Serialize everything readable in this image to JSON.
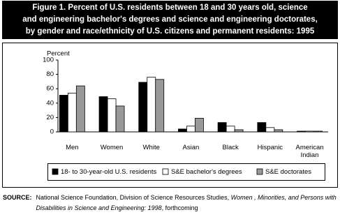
{
  "chart_data": {
    "type": "bar",
    "title": [
      "Figure 1.  Percent of U.S. residents between 18 and 30 years old, science",
      "and engineering bachelor's degrees and science and engineering doctorates,",
      "by gender and race/ethnicity of U.S. citizens and permanent residents: 1995"
    ],
    "y_label": "Percent",
    "categories": [
      "Men",
      "Women",
      "White",
      "Asian",
      "Black",
      "Hispanic",
      "American Indian"
    ],
    "series": [
      {
        "name": "18- to 30-year-old U.S. residents",
        "color": "#000000",
        "values": [
          51,
          49,
          69,
          4,
          13,
          13,
          1
        ]
      },
      {
        "name": "S&E bachelor's degrees",
        "color": "#ffffff",
        "values": [
          54,
          46,
          76,
          8,
          8,
          6,
          1
        ]
      },
      {
        "name": "S&E doctorates",
        "color": "#999999",
        "values": [
          64,
          36,
          73,
          19,
          3,
          3,
          1
        ]
      }
    ],
    "ylim": [
      0,
      100
    ],
    "yticks": [
      0,
      20,
      40,
      60,
      80,
      100
    ],
    "source": {
      "label": "SOURCE:",
      "parts": [
        "National Science Foundation, Division of Science Resources Studies, ",
        "Women , Minorities, and Persons with Disabilities in Science and Engineering: 1998",
        ", forthcoming"
      ]
    }
  }
}
